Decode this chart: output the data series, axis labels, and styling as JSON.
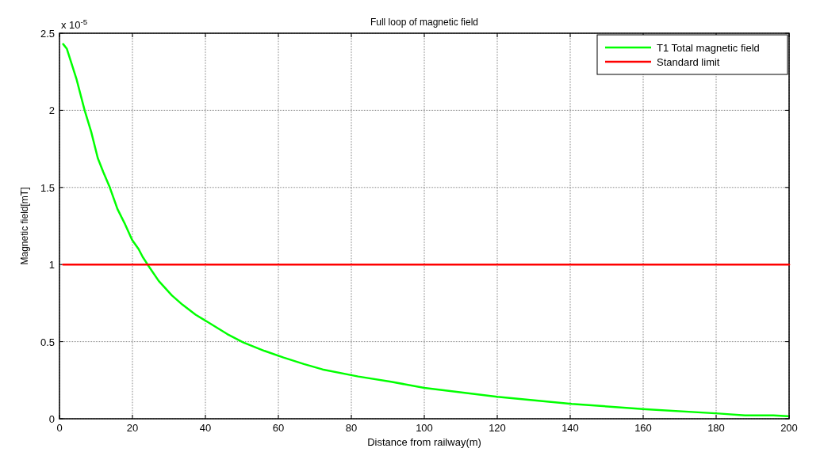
{
  "chart_data": {
    "type": "line",
    "title": "Full loop of magnetic field",
    "xlabel": "Distance from railway(m)",
    "ylabel": "Magnetic field[mT]",
    "annotations": [
      "x 10$^{-5}$"
    ],
    "xlim": [
      0,
      200
    ],
    "xticks": [
      0,
      20,
      40,
      60,
      80,
      100,
      120,
      140,
      160,
      180,
      200
    ],
    "ylim": [
      0,
      2.5
    ],
    "yticks": [
      0,
      0.5,
      1,
      1.5,
      2,
      2.5
    ],
    "grid": true,
    "legend": "top right",
    "series": [
      {
        "name": "T1 Total magnetic field",
        "color": "#00ff00",
        "x": [
          1,
          2,
          4.7,
          6.9,
          8.7,
          10.5,
          12,
          13.8,
          15.9,
          17.8,
          19.9,
          21.7,
          22.8,
          24.3,
          27.2,
          30.8,
          33.7,
          37.3,
          40.8,
          46,
          50.4,
          56.2,
          61.4,
          67,
          72.1,
          81.9,
          90.9,
          100,
          120,
          140.4,
          160.7,
          180.7,
          187.9,
          195.7,
          199.6
        ],
        "values": [
          2.43,
          2.4,
          2.2,
          2,
          1.86,
          1.69,
          1.6,
          1.5,
          1.36,
          1.27,
          1.16,
          1.1,
          1.05,
          0.995,
          0.894,
          0.8,
          0.74,
          0.675,
          0.625,
          0.549,
          0.495,
          0.44,
          0.397,
          0.355,
          0.32,
          0.274,
          0.24,
          0.2,
          0.143,
          0.096,
          0.062,
          0.034,
          0.022,
          0.022,
          0.017
        ]
      },
      {
        "name": "Standard limit",
        "color": "#ff0000",
        "x": [
          1,
          200
        ],
        "values": [
          1,
          1
        ]
      }
    ]
  }
}
